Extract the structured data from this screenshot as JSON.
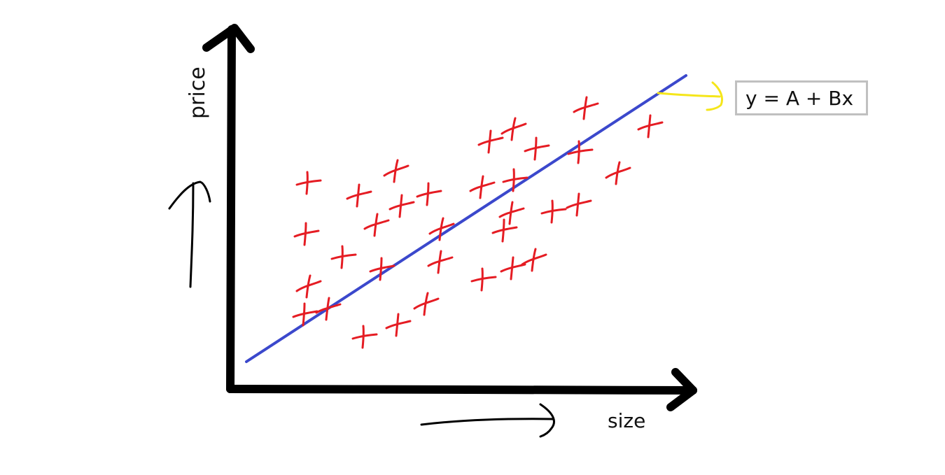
{
  "diagram": {
    "x_axis_label": "size",
    "y_axis_label": "price",
    "equation": "y = A + Bx",
    "colors": {
      "axes": "#000000",
      "points": "#e51c23",
      "regression_line": "#3b48cc",
      "pointer_arrow": "#f5e61a",
      "equation_border": "#c0c0c0"
    }
  }
}
